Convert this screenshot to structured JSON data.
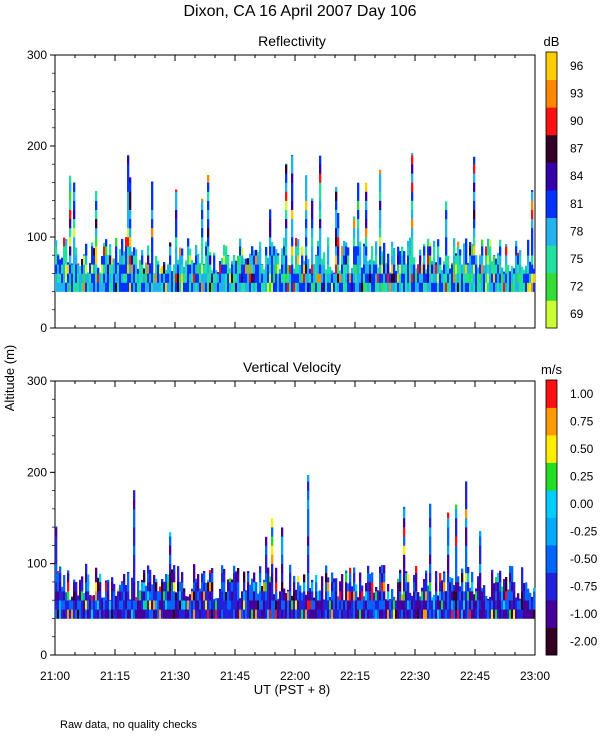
{
  "title": "Dixon, CA 16 April 2007  Day 106",
  "note": "Raw data, no quality checks",
  "chart_data": [
    {
      "type": "heatmap",
      "title": "Reflectivity",
      "ylabel": "Altitude (m)",
      "ylim": [
        0,
        300
      ],
      "yticks": [
        0,
        100,
        200,
        300
      ],
      "colorbar": {
        "unit": "dB",
        "labels": [
          "69",
          "72",
          "75",
          "78",
          "81",
          "84",
          "87",
          "90",
          "93",
          "96"
        ],
        "colors": [
          "#ccff33",
          "#33dd33",
          "#22e0a0",
          "#22b2ee",
          "#0033ff",
          "#3300aa",
          "#33002a",
          "#ff1111",
          "#ff8800",
          "#ffcc00"
        ]
      },
      "field": {
        "time_range": [
          "21:00",
          "23:00"
        ],
        "lowest_gate_m": 40,
        "typical_top_m": 100,
        "peak_top_m": 200,
        "dominant_values": [
          "75",
          "78",
          "81"
        ]
      }
    },
    {
      "type": "heatmap",
      "title": "Vertical Velocity",
      "ylabel": "Altitude (m)",
      "ylim": [
        0,
        300
      ],
      "yticks": [
        0,
        100,
        200,
        300
      ],
      "colorbar": {
        "unit": "m/s",
        "labels": [
          "-2.00",
          "-1.00",
          "-0.75",
          "-0.50",
          "-0.25",
          "0.00",
          "0.25",
          "0.50",
          "0.75",
          "1.00"
        ],
        "colors": [
          "#330022",
          "#440099",
          "#2222dd",
          "#0066ff",
          "#00aaff",
          "#00ccff",
          "#22dd22",
          "#ffee00",
          "#ff9900",
          "#ff1111"
        ]
      },
      "field": {
        "time_range": [
          "21:00",
          "23:00"
        ],
        "lowest_gate_m": 40,
        "typical_top_m": 100,
        "peak_top_m": 200,
        "dominant_values": [
          "-1.00",
          "-0.75",
          "-0.50"
        ]
      }
    }
  ],
  "xaxis": {
    "ticks": [
      "21:00",
      "21:15",
      "21:30",
      "21:45",
      "22:00",
      "22:15",
      "22:30",
      "22:45",
      "23:00"
    ],
    "label": "UT  (PST + 8)"
  }
}
